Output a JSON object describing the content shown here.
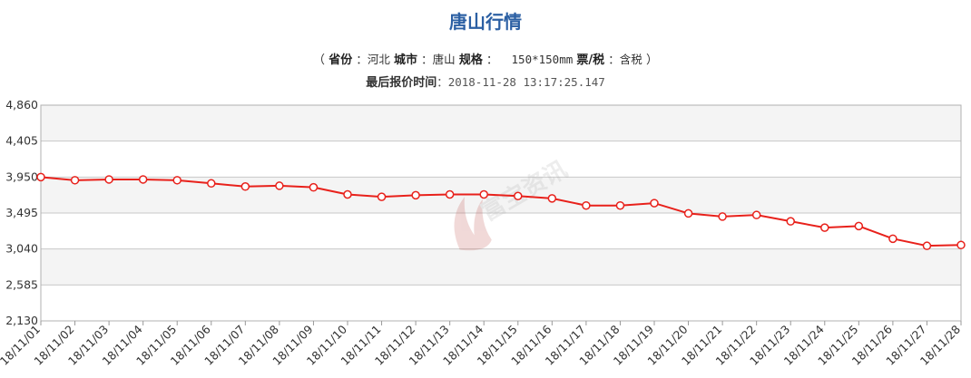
{
  "title": "唐山行情",
  "spec": {
    "open": "（",
    "province_label": "省份",
    "province_value": "：河北",
    "city_label": "城市",
    "city_value": "：唐山",
    "size_label": "规格",
    "size_value": "：  150*150mm",
    "tax_label": "票/税",
    "tax_value": "：含税",
    "close": "）"
  },
  "quote_time": {
    "label": "最后报价时间",
    "value": "：2018-11-28 13:17:25.147"
  },
  "watermark": "富宝资讯",
  "colors": {
    "line": "#e8211b",
    "title": "#2b5fa3",
    "band": "#f4f4f4",
    "grid": "#c8c8c8"
  },
  "chart_data": {
    "type": "line",
    "grid": true,
    "ylim": [
      2130,
      4860
    ],
    "yticks": [
      "4,860",
      "4,405",
      "3,950",
      "3,495",
      "3,040",
      "2,585",
      "2,130"
    ],
    "ytick_values": [
      4860,
      4405,
      3950,
      3495,
      3040,
      2585,
      2130
    ],
    "categories": [
      "18/11/01",
      "18/11/02",
      "18/11/03",
      "18/11/04",
      "18/11/05",
      "18/11/06",
      "18/11/07",
      "18/11/08",
      "18/11/09",
      "18/11/10",
      "18/11/11",
      "18/11/12",
      "18/11/13",
      "18/11/14",
      "18/11/15",
      "18/11/16",
      "18/11/17",
      "18/11/18",
      "18/11/19",
      "18/11/20",
      "18/11/21",
      "18/11/22",
      "18/11/23",
      "18/11/24",
      "18/11/25",
      "18/11/26",
      "18/11/27",
      "18/11/28"
    ],
    "series": [
      {
        "values": [
          3950,
          3910,
          3920,
          3920,
          3910,
          3870,
          3830,
          3840,
          3820,
          3730,
          3700,
          3720,
          3730,
          3730,
          3710,
          3680,
          3590,
          3590,
          3620,
          3490,
          3450,
          3470,
          3390,
          3310,
          3330,
          3170,
          3080,
          3090
        ]
      }
    ]
  }
}
